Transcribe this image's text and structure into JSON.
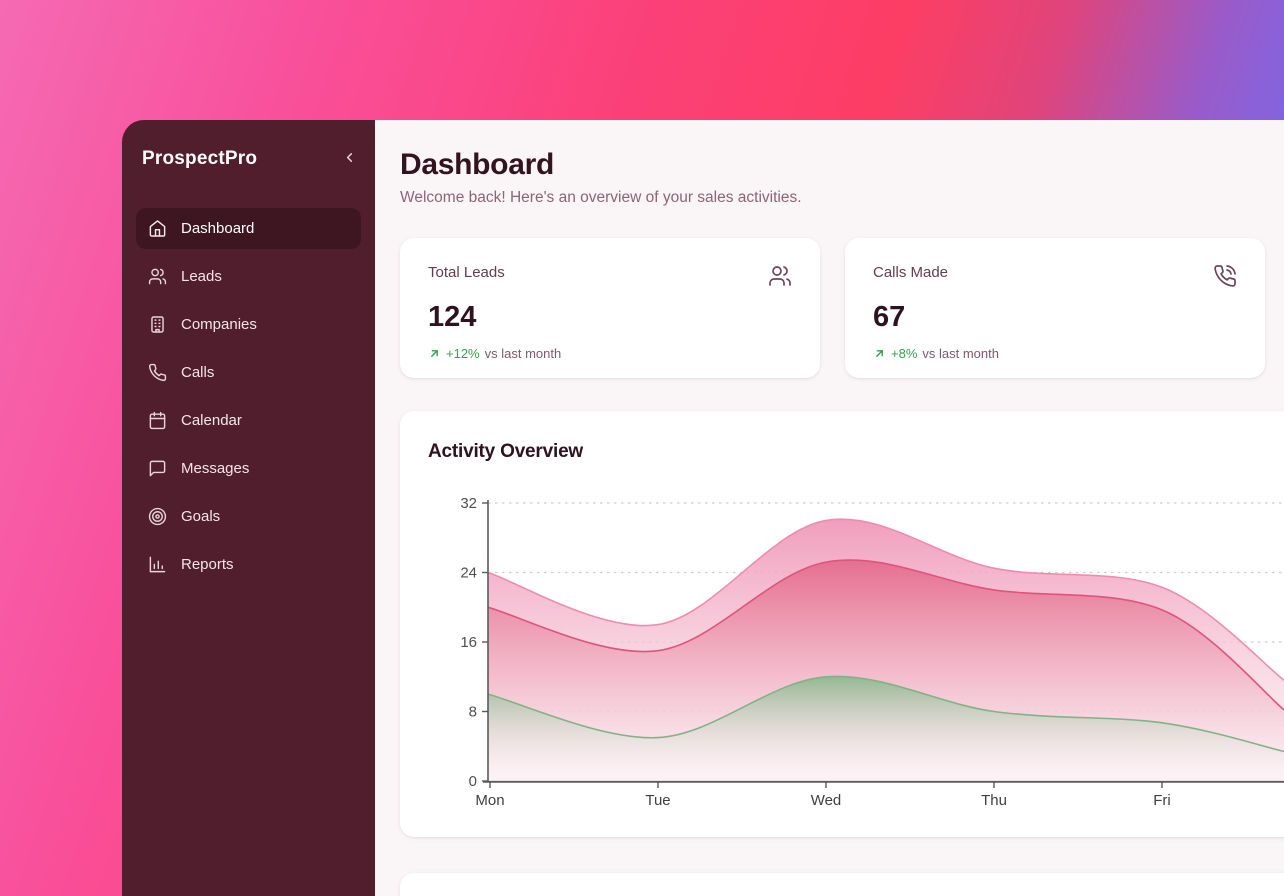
{
  "app": {
    "name": "ProspectPro",
    "collapse_icon": "chevron-left"
  },
  "sidebar": {
    "items": [
      {
        "label": "Dashboard",
        "icon": "home",
        "active": true
      },
      {
        "label": "Leads",
        "icon": "users",
        "active": false
      },
      {
        "label": "Companies",
        "icon": "building",
        "active": false
      },
      {
        "label": "Calls",
        "icon": "phone",
        "active": false
      },
      {
        "label": "Calendar",
        "icon": "calendar",
        "active": false
      },
      {
        "label": "Messages",
        "icon": "message-square",
        "active": false
      },
      {
        "label": "Goals",
        "icon": "target",
        "active": false
      },
      {
        "label": "Reports",
        "icon": "bar-chart",
        "active": false
      }
    ]
  },
  "header": {
    "title": "Dashboard",
    "subtitle": "Welcome back! Here's an overview of your sales activities."
  },
  "stats": [
    {
      "label": "Total Leads",
      "value": "124",
      "trend": "+12%",
      "trend_suffix": "vs last month",
      "icon": "users",
      "trend_icon": "arrow-up-right"
    },
    {
      "label": "Calls Made",
      "value": "67",
      "trend": "+8%",
      "trend_suffix": "vs last month",
      "icon": "phone-call",
      "trend_icon": "arrow-up-right"
    }
  ],
  "chart_card": {
    "title": "Activity Overview"
  },
  "chart_data": {
    "type": "area",
    "title": "Activity Overview",
    "categories": [
      "Mon",
      "Tue",
      "Wed",
      "Thu",
      "Fri"
    ],
    "series": [
      {
        "name": "light-pink-area",
        "values": [
          24,
          18,
          30,
          24.5,
          22.3
        ],
        "edge_value": 11.6,
        "stroke": "#ee8cb0",
        "fill_top": "rgba(240,153,184,0.95)",
        "fill_bottom": "rgba(252,240,244,0.55)"
      },
      {
        "name": "rose-area",
        "values": [
          20,
          15,
          25.2,
          22,
          19.7
        ],
        "edge_value": 8.2,
        "stroke": "#e0537c",
        "fill_top": "rgba(229,109,142,0.95)",
        "fill_bottom": "rgba(252,240,244,0.5)"
      },
      {
        "name": "green-area",
        "values": [
          10,
          5,
          12,
          8,
          6.7
        ],
        "edge_value": 3.4,
        "stroke": "#82b286",
        "fill_top": "rgba(143,184,144,0.95)",
        "fill_bottom": "rgba(255,255,255,0)"
      }
    ],
    "ylim": [
      0,
      32
    ],
    "yticks": [
      0,
      8,
      16,
      24,
      32
    ],
    "grid": "horizontal-dashed",
    "legend": "none",
    "cropped_right_edge": true
  },
  "colors": {
    "sidebar_bg": "#511e2d",
    "sidebar_active_bg": "#3e1622",
    "main_bg": "#faf5f6",
    "card_bg": "#ffffff",
    "heading_text": "#2f1220",
    "muted_text": "#8d6577",
    "trend_green": "#35a24b",
    "gradient_pink": "#fb4078",
    "gradient_purple": "#6f70f2",
    "axis_gray": "#5a5a5a",
    "gridline_gray": "#d2cbce"
  }
}
